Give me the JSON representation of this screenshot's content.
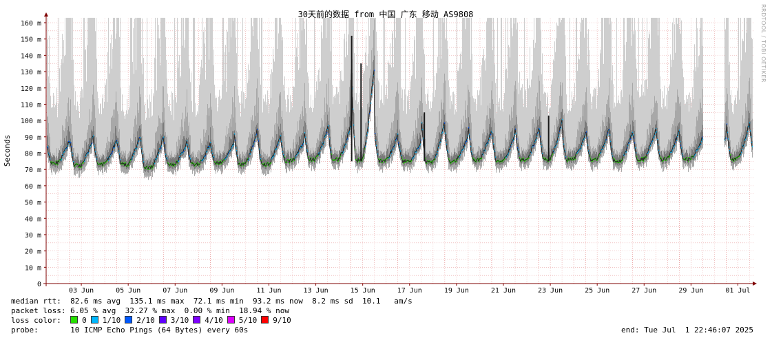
{
  "chart_data": {
    "type": "area",
    "title": "30天前的数据 from 中国 广东 移动 AS9808",
    "ylabel": "Seconds",
    "xlabel": "",
    "ylim": [
      0,
      165
    ],
    "y_ticks": [
      {
        "value": 0,
        "label": "0"
      },
      {
        "value": 10,
        "label": "10 m"
      },
      {
        "value": 20,
        "label": "20 m"
      },
      {
        "value": 30,
        "label": "30 m"
      },
      {
        "value": 40,
        "label": "40 m"
      },
      {
        "value": 50,
        "label": "50 m"
      },
      {
        "value": 60,
        "label": "60 m"
      },
      {
        "value": 70,
        "label": "70 m"
      },
      {
        "value": 80,
        "label": "80 m"
      },
      {
        "value": 90,
        "label": "90 m"
      },
      {
        "value": 100,
        "label": "100 m"
      },
      {
        "value": 110,
        "label": "110 m"
      },
      {
        "value": 120,
        "label": "120 m"
      },
      {
        "value": 130,
        "label": "130 m"
      },
      {
        "value": 140,
        "label": "140 m"
      },
      {
        "value": 150,
        "label": "150 m"
      },
      {
        "value": 160,
        "label": "160 m"
      }
    ],
    "x_range_days": [
      0,
      30.5
    ],
    "x_ticks": [
      {
        "day": 1,
        "label": "03 Jun"
      },
      {
        "day": 3,
        "label": "05 Jun"
      },
      {
        "day": 5,
        "label": "07 Jun"
      },
      {
        "day": 7,
        "label": "09 Jun"
      },
      {
        "day": 9,
        "label": "11 Jun"
      },
      {
        "day": 11,
        "label": "13 Jun"
      },
      {
        "day": 13,
        "label": "15 Jun"
      },
      {
        "day": 15,
        "label": "17 Jun"
      },
      {
        "day": 17,
        "label": "19 Jun"
      },
      {
        "day": 19,
        "label": "21 Jun"
      },
      {
        "day": 21,
        "label": "23 Jun"
      },
      {
        "day": 23,
        "label": "25 Jun"
      },
      {
        "day": 25,
        "label": "27 Jun"
      },
      {
        "day": 27,
        "label": "29 Jun"
      },
      {
        "day": 29,
        "label": "01 Jul"
      }
    ],
    "grid": true,
    "data_gap_days": [
      28.0,
      28.9
    ],
    "daily_median": [
      {
        "day": 0,
        "min": 74,
        "max": 88
      },
      {
        "day": 1,
        "min": 72,
        "max": 90
      },
      {
        "day": 2,
        "min": 73,
        "max": 88
      },
      {
        "day": 3,
        "min": 73,
        "max": 90
      },
      {
        "day": 4,
        "min": 71,
        "max": 90
      },
      {
        "day": 5,
        "min": 73,
        "max": 87
      },
      {
        "day": 6,
        "min": 73,
        "max": 86
      },
      {
        "day": 7,
        "min": 74,
        "max": 86
      },
      {
        "day": 8,
        "min": 73,
        "max": 95
      },
      {
        "day": 9,
        "min": 73,
        "max": 92
      },
      {
        "day": 10,
        "min": 75,
        "max": 88
      },
      {
        "day": 11,
        "min": 76,
        "max": 95
      },
      {
        "day": 12,
        "min": 76,
        "max": 98
      },
      {
        "day": 13,
        "min": 75,
        "max": 135
      },
      {
        "day": 14,
        "min": 75,
        "max": 92
      },
      {
        "day": 15,
        "min": 75,
        "max": 88
      },
      {
        "day": 16,
        "min": 74,
        "max": 100
      },
      {
        "day": 17,
        "min": 75,
        "max": 92
      },
      {
        "day": 18,
        "min": 76,
        "max": 95
      },
      {
        "day": 19,
        "min": 75,
        "max": 92
      },
      {
        "day": 20,
        "min": 76,
        "max": 95
      },
      {
        "day": 21,
        "min": 76,
        "max": 100
      },
      {
        "day": 22,
        "min": 76,
        "max": 92
      },
      {
        "day": 23,
        "min": 76,
        "max": 95
      },
      {
        "day": 24,
        "min": 75,
        "max": 93
      },
      {
        "day": 25,
        "min": 76,
        "max": 95
      },
      {
        "day": 26,
        "min": 76,
        "max": 95
      },
      {
        "day": 27,
        "min": 76,
        "max": 90
      },
      {
        "day": 29,
        "min": 76,
        "max": 100
      },
      {
        "day": 30,
        "min": 76,
        "max": 95
      }
    ],
    "spikes": [
      {
        "day": 13.0,
        "value": 152
      },
      {
        "day": 13.4,
        "value": 135
      },
      {
        "day": 16.1,
        "value": 105
      },
      {
        "day": 21.4,
        "value": 103
      }
    ],
    "colors": {
      "background": "#ffffff",
      "grid": "#e8a0a0",
      "axis": "#7f0000",
      "smoke_light": "#cecece",
      "smoke_mid": "#a8a8a8",
      "smoke_dark": "#7a7a7a",
      "median_line": "#1a1a1a",
      "loss_0": "#26e000",
      "loss_1": "#00b8ff",
      "loss_2": "#0059ff"
    }
  },
  "stats": {
    "median_label": "median rtt:",
    "median_values": "82.6 ms avg  135.1 ms max  72.1 ms min  93.2 ms now  8.2 ms sd  10.1   am/s",
    "loss_label": "packet loss:",
    "loss_values": "6.05 % avg  32.27 % max  0.00 % min  18.94 % now",
    "color_label": "loss color:",
    "loss_colors": [
      {
        "label": "0",
        "color": "#26e000"
      },
      {
        "label": "1/10",
        "color": "#00b8ff"
      },
      {
        "label": "2/10",
        "color": "#0059ff"
      },
      {
        "label": "3/10",
        "color": "#5e00ff"
      },
      {
        "label": "4/10",
        "color": "#7e00ff"
      },
      {
        "label": "5/10",
        "color": "#dd00ff"
      },
      {
        "label": "9/10",
        "color": "#ff0000"
      }
    ],
    "probe_label": "probe:",
    "probe_value": "10 ICMP Echo Pings (64 Bytes) every 60s",
    "end_text": "end: Tue Jul  1 22:46:07 2025"
  },
  "watermark": "RRDTOOL / TOBI OETIKER"
}
